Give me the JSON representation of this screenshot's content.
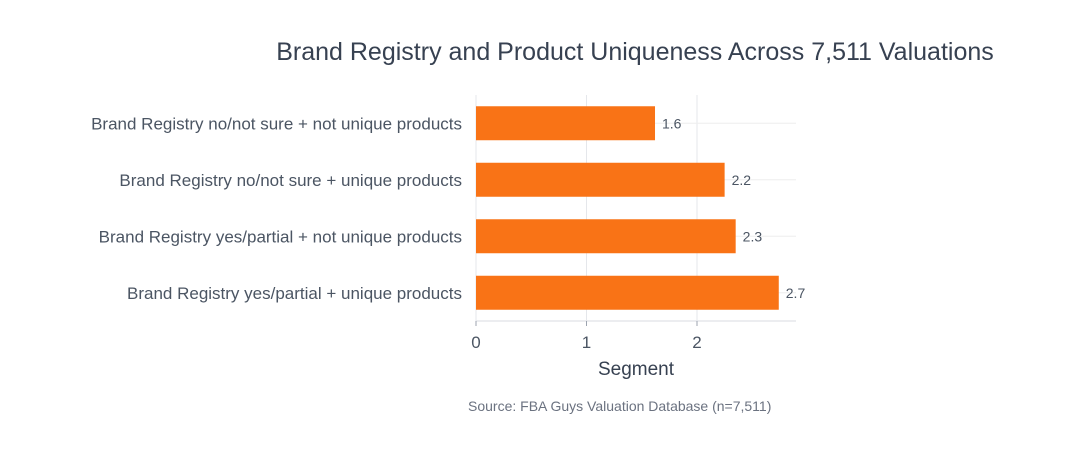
{
  "chart_data": {
    "type": "bar",
    "orientation": "horizontal",
    "title": "Brand Registry and Product Uniqueness Across 7,511 Valuations",
    "xlabel": "Segment",
    "ylabel": "",
    "categories": [
      "Brand Registry no/not sure + not unique products",
      "Brand Registry no/not sure + unique products",
      "Brand Registry yes/partial + not unique products",
      "Brand Registry yes/partial + unique products"
    ],
    "values": [
      1.62,
      2.25,
      2.35,
      2.74
    ],
    "value_labels": [
      "1.6",
      "2.2",
      "2.3",
      "2.7"
    ],
    "xlim": [
      0,
      2.9
    ],
    "xticks": [
      0,
      1,
      2
    ],
    "xtick_labels": [
      "0",
      "1",
      "2"
    ],
    "grid": true,
    "bar_color": "#f97316",
    "source": "Source: FBA Guys Valuation Database (n=7,511)"
  }
}
